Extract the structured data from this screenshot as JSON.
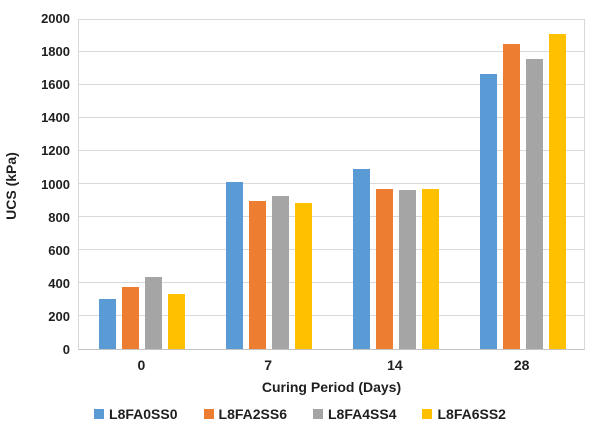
{
  "chart_data": {
    "type": "bar",
    "title": "",
    "xlabel": "Curing Period (Days)",
    "ylabel": "UCS (kPa)",
    "categories": [
      "0",
      "7",
      "14",
      "28"
    ],
    "series": [
      {
        "name": "L8FA0SS0",
        "color": "#5B9BD5",
        "values": [
          300,
          1010,
          1090,
          1660
        ]
      },
      {
        "name": "L8FA2SS6",
        "color": "#ED7D31",
        "values": [
          375,
          895,
          965,
          1840
        ]
      },
      {
        "name": "L8FA4SS4",
        "color": "#A5A5A5",
        "values": [
          435,
          925,
          960,
          1750
        ]
      },
      {
        "name": "L8FA6SS2",
        "color": "#FFC000",
        "values": [
          330,
          885,
          965,
          1905
        ]
      }
    ],
    "ylim": [
      0,
      2000
    ],
    "y_tick_step": 200,
    "y_ticks": [
      0,
      200,
      400,
      600,
      800,
      1000,
      1200,
      1400,
      1600,
      1800,
      2000
    ],
    "grid": true,
    "legend_position": "bottom",
    "background_color": "#FFFFFF",
    "gridline_color": "#D9D9D9",
    "text_color": "#1F1F1F"
  }
}
